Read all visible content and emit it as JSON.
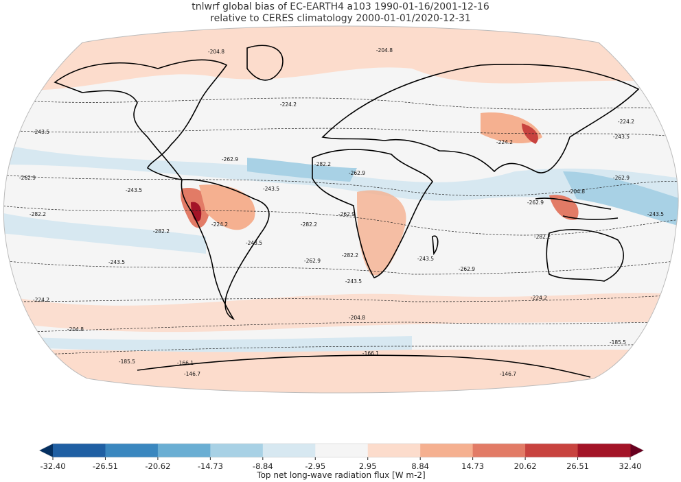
{
  "title": {
    "line1": "tnlwrf global bias of EC-EARTH4 a103 1990-01-16/2001-12-16",
    "line2": "relative to CERES climatology 2000-01-01/2020-12-31"
  },
  "map": {
    "projection": "Robinson",
    "coastlines": true,
    "contour_labels": [
      "-204.8",
      "-204.8",
      "-224.2",
      "-224.2",
      "-243.5",
      "-243.5",
      "-262.9",
      "-262.9",
      "-262.9",
      "-282.2",
      "-282.2",
      "-282.2",
      "-243.5",
      "-243.5",
      "-262.9",
      "-224.2",
      "-243.5",
      "-262.9",
      "-282.2",
      "-282.2",
      "-282.2",
      "-262.9",
      "-243.5",
      "-224.2",
      "-204.8",
      "-204.8",
      "-185.5",
      "-166.1",
      "-166.1",
      "-146.7",
      "-185.5",
      "-146.7",
      "-243.5",
      "-204.8",
      "-262.9",
      "-243.5",
      "-224.2",
      "-224.2",
      "-243.5",
      "-262.9"
    ]
  },
  "colorbar": {
    "label": "Top net long-wave radiation flux [W m-2]",
    "ticks": [
      "-32.40",
      "-26.51",
      "-20.62",
      "-14.73",
      "-8.84",
      "-2.95",
      "2.95",
      "8.84",
      "14.73",
      "20.62",
      "26.51",
      "32.40"
    ],
    "colors": [
      "#1f5fa3",
      "#3a87bf",
      "#6aaed3",
      "#a8d1e5",
      "#d7e8f1",
      "#f5f5f5",
      "#fcdccc",
      "#f5b090",
      "#e27b66",
      "#c8433f",
      "#a31427"
    ],
    "extend_low_color": "#053061",
    "extend_high_color": "#67001f",
    "colormap": "RdBu_r"
  }
}
